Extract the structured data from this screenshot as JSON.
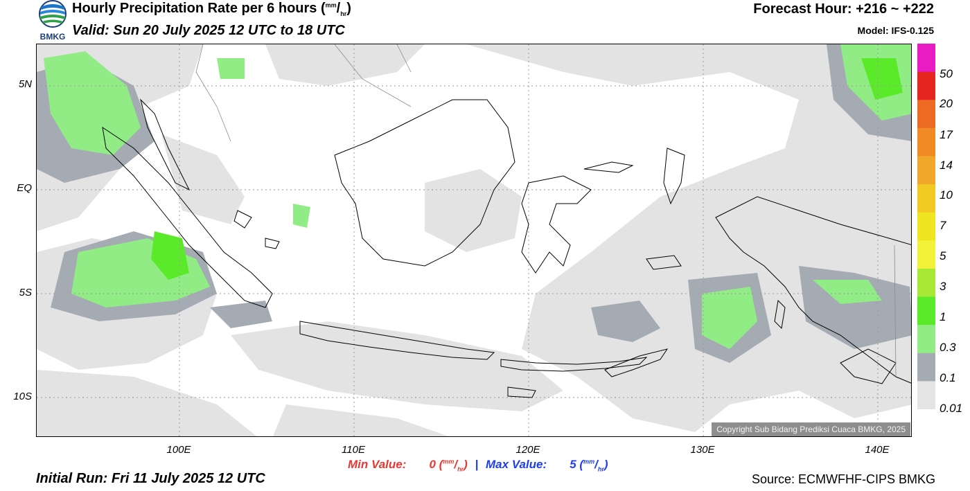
{
  "header": {
    "title_main": "Hourly Precipitation Rate per 6 hours (",
    "title_unit_top": "mm",
    "title_slash": "/",
    "title_unit_bottom": "hr",
    "title_close": ")",
    "valid": "Valid: Sun 20 July 2025 12 UTC to 18 UTC",
    "forecast_hour": "Forecast Hour: +216 ~ +222",
    "model": "Model: IFS-0.125"
  },
  "logo": {
    "text": "BMKG"
  },
  "map": {
    "lat_labels": [
      "5N",
      "EQ",
      "5S",
      "10S"
    ],
    "lon_labels": [
      "100E",
      "110E",
      "120E",
      "130E",
      "140E"
    ],
    "copyright": "Copyright Sub Bidang Prediksi Cuaca BMKG, 2025"
  },
  "legend": {
    "labels": [
      "50",
      "20",
      "17",
      "14",
      "10",
      "7",
      "5",
      "3",
      "1",
      "0.3",
      "0.1",
      "0.01"
    ],
    "colors": [
      "#e81cc2",
      "#e5251f",
      "#ec6a23",
      "#f08a24",
      "#f0a72a",
      "#f2c923",
      "#f0e521",
      "#f2f23a",
      "#a8e936",
      "#5bea2a",
      "#91ec86",
      "#a5abb3",
      "#e4e4e4"
    ]
  },
  "footer": {
    "min_label": "Min Value:",
    "min_value": "0",
    "max_label": "Max Value:",
    "max_value": "5",
    "unit_top": "mm",
    "unit_slash": "/",
    "unit_bottom": "hr",
    "separator": "|",
    "initial_run": "Initial Run: Fri 11 July 2025 12 UTC",
    "source": "Source: ECMWFHF-CIPS BMKG"
  }
}
